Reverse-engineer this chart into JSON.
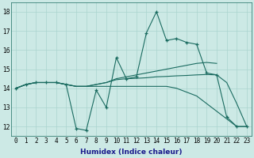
{
  "xlabel": "Humidex (Indice chaleur)",
  "x_values": [
    0,
    1,
    2,
    3,
    4,
    5,
    6,
    7,
    8,
    9,
    10,
    11,
    12,
    13,
    14,
    15,
    16,
    17,
    18,
    19,
    20,
    21,
    22,
    23
  ],
  "line1": [
    14.0,
    14.2,
    14.3,
    14.3,
    14.3,
    14.2,
    11.9,
    11.8,
    13.9,
    13.0,
    15.6,
    14.5,
    14.6,
    16.9,
    18.0,
    16.5,
    16.6,
    16.4,
    16.3,
    14.8,
    14.7,
    12.5,
    12.0,
    12.0
  ],
  "line2": [
    14.0,
    14.2,
    14.3,
    14.3,
    14.3,
    14.2,
    14.1,
    14.1,
    14.2,
    14.3,
    14.5,
    14.6,
    14.7,
    14.8,
    14.9,
    15.0,
    15.1,
    15.2,
    15.3,
    15.35,
    15.3,
    null,
    null,
    null
  ],
  "line3": [
    14.0,
    14.2,
    14.3,
    14.3,
    14.3,
    14.2,
    14.1,
    14.1,
    14.2,
    14.3,
    14.45,
    14.5,
    14.52,
    14.55,
    14.6,
    14.62,
    14.65,
    14.67,
    14.7,
    14.72,
    14.7,
    14.3,
    13.2,
    12.0
  ],
  "line4": [
    14.0,
    14.2,
    14.3,
    14.3,
    14.3,
    14.2,
    14.1,
    14.1,
    14.1,
    14.1,
    14.1,
    14.1,
    14.1,
    14.1,
    14.1,
    14.1,
    14.0,
    13.8,
    13.6,
    13.2,
    12.8,
    12.4,
    12.0,
    12.0
  ],
  "ylim": [
    11.5,
    18.5
  ],
  "yticks": [
    12,
    13,
    14,
    15,
    16,
    17,
    18
  ],
  "bg_color": "#cce9e5",
  "grid_color": "#aad4cf",
  "line_color": "#1a6b60",
  "xlabel_color": "#1a1a8c",
  "xlabel_fontsize": 6.5,
  "tick_fontsize": 5.5
}
